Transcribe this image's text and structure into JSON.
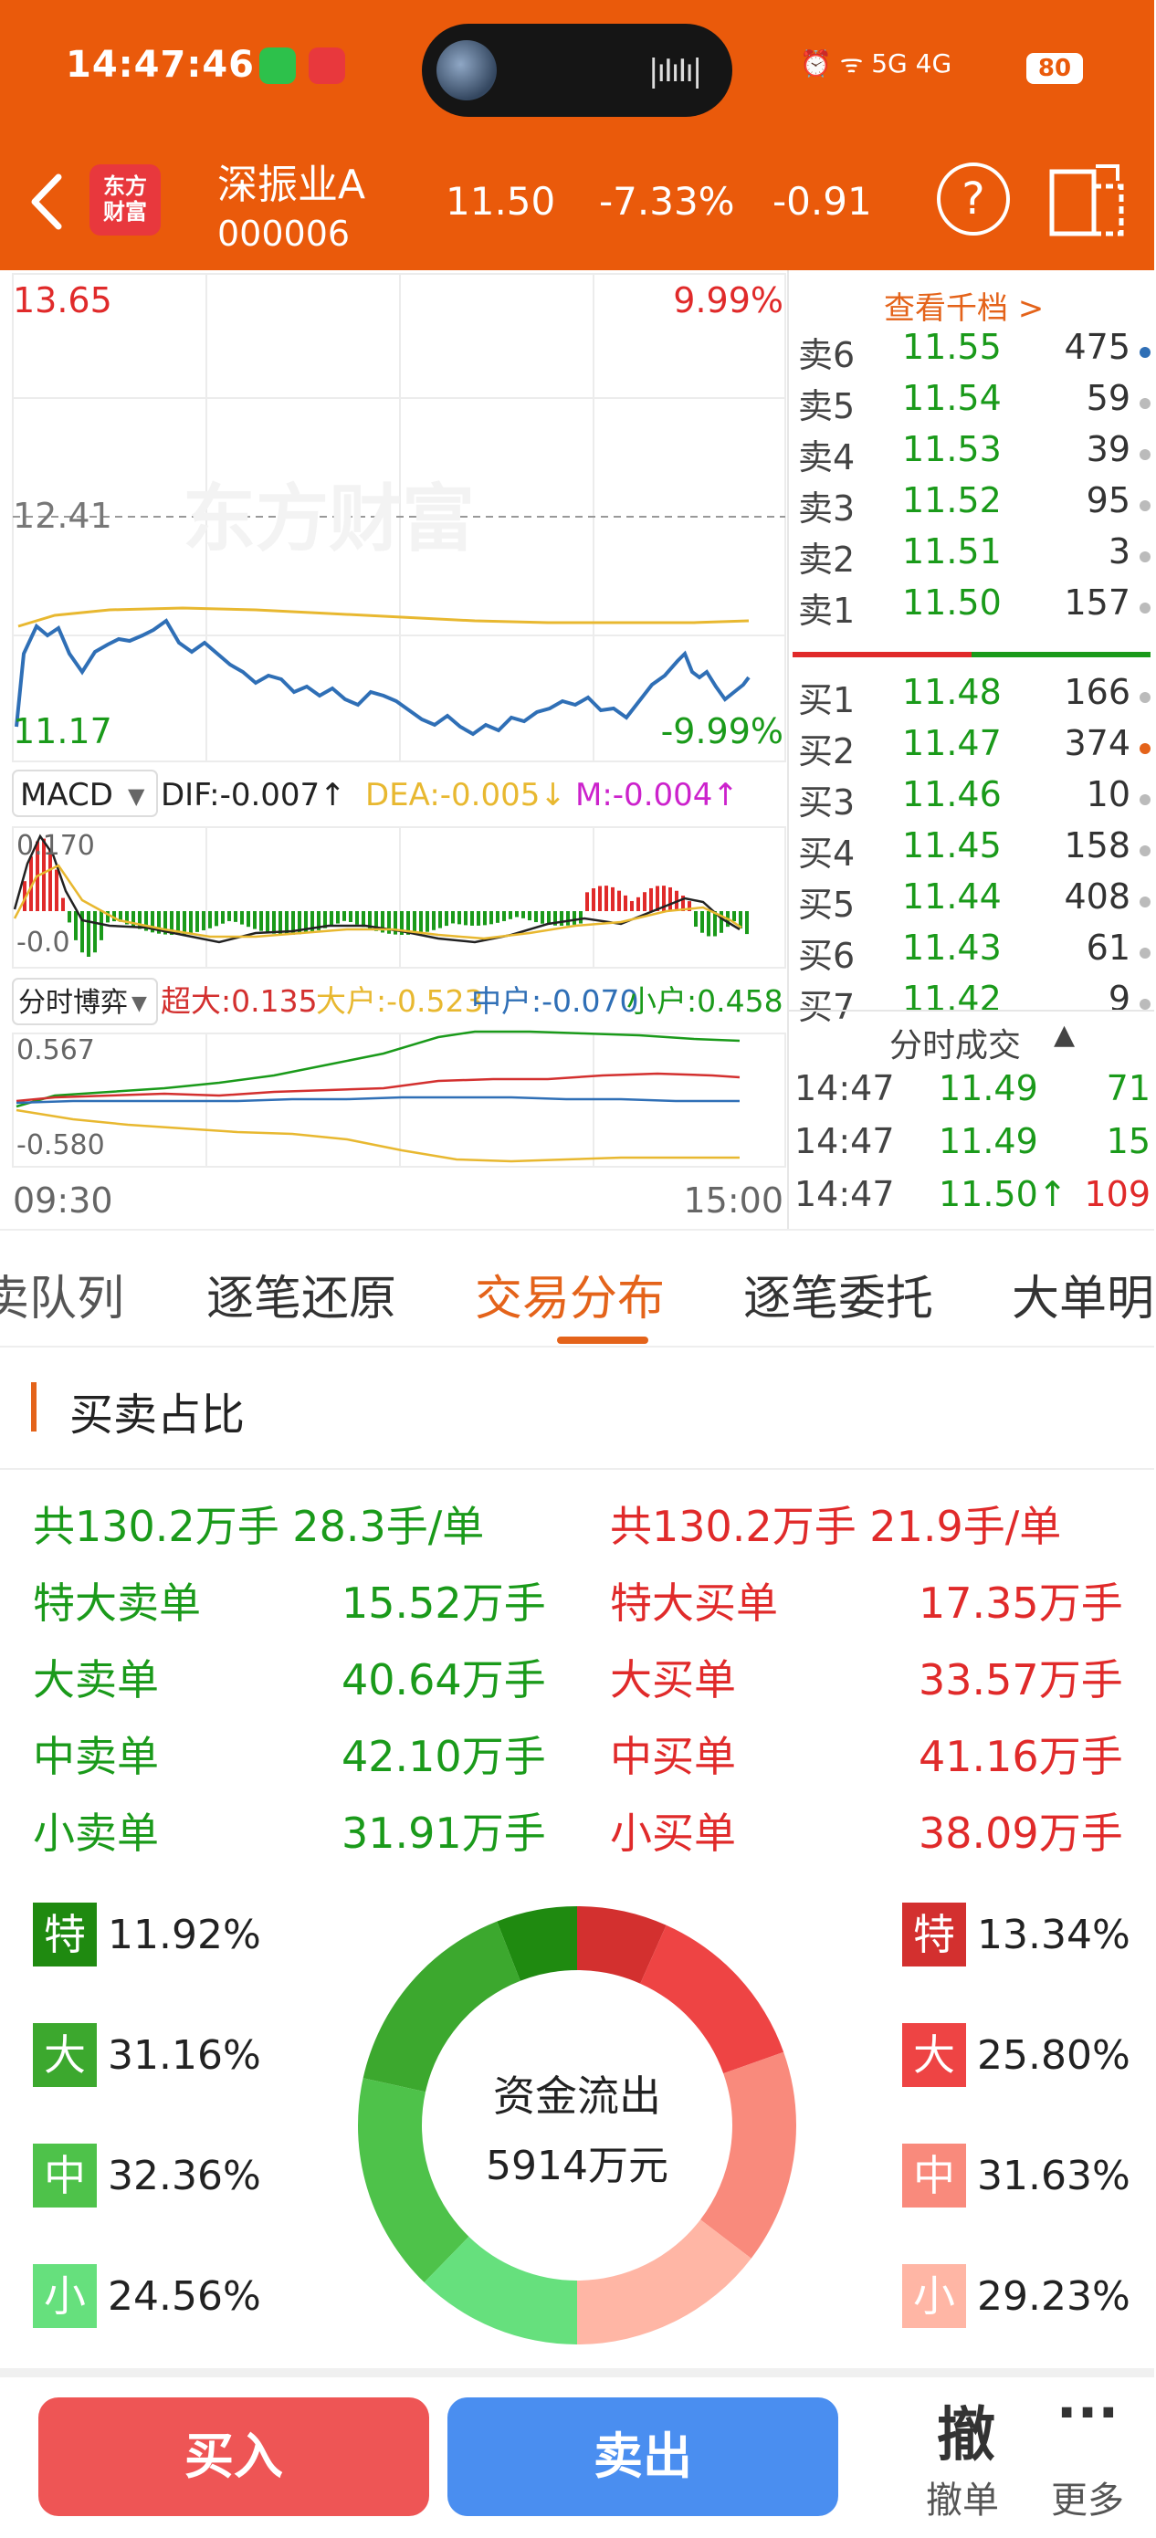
{
  "status": {
    "time": "14:47:46",
    "signal_text": "⏰  ᯤ 5G  4G",
    "battery": "80"
  },
  "header": {
    "back_icon": "chevron-left-icon",
    "logo_text_1": "东方",
    "logo_text_2": "财富",
    "stock_name": "深振业A",
    "stock_code": "000006",
    "price": "11.50",
    "change_pct": "-7.33%",
    "change": "-0.91",
    "help_label": "?"
  },
  "chart": {
    "price_high": "13.65",
    "pct_high": "9.99%",
    "price_ref": "12.41",
    "price_low": "11.17",
    "pct_low": "-9.99%",
    "watermark": "东方财富",
    "macd_selector": "MACD",
    "dif": "DIF:-0.007↑",
    "dea": "DEA:-0.005↓",
    "m": "M:-0.004↑",
    "macd_high": "0.170",
    "macd_low": "-0.0",
    "flow_selector": "分时博弈",
    "flow_super": "超大:0.135",
    "flow_large": "大户:-0.523",
    "flow_mid": "中户:-0.070",
    "flow_small": "小户:0.458",
    "flow_high": "0.567",
    "flow_low": "-0.580",
    "time_start": "09:30",
    "time_end": "15:00"
  },
  "order_book": {
    "view_more": "查看千档 >",
    "asks": [
      {
        "label": "卖6",
        "price": "11.55",
        "vol": "475"
      },
      {
        "label": "卖5",
        "price": "11.54",
        "vol": "59"
      },
      {
        "label": "卖4",
        "price": "11.53",
        "vol": "39"
      },
      {
        "label": "卖3",
        "price": "11.52",
        "vol": "95"
      },
      {
        "label": "卖2",
        "price": "11.51",
        "vol": "3"
      },
      {
        "label": "卖1",
        "price": "11.50",
        "vol": "157"
      }
    ],
    "bids": [
      {
        "label": "买1",
        "price": "11.48",
        "vol": "166"
      },
      {
        "label": "买2",
        "price": "11.47",
        "vol": "374"
      },
      {
        "label": "买3",
        "price": "11.46",
        "vol": "10"
      },
      {
        "label": "买4",
        "price": "11.45",
        "vol": "158"
      },
      {
        "label": "买5",
        "price": "11.44",
        "vol": "408"
      },
      {
        "label": "买6",
        "price": "11.43",
        "vol": "61"
      },
      {
        "label": "买7",
        "price": "11.42",
        "vol": "9"
      }
    ]
  },
  "ticks": {
    "title": "分时成交",
    "rows": [
      {
        "time": "14:47",
        "price": "11.49",
        "vol": "71"
      },
      {
        "time": "14:47",
        "price": "11.49",
        "vol": "15"
      },
      {
        "time": "14:47",
        "price": "11.50↑",
        "vol": "109"
      }
    ]
  },
  "tabs": [
    "卖队列",
    "逐笔还原",
    "交易分布",
    "逐笔委托",
    "大单明"
  ],
  "distribution": {
    "section_title": "买卖占比",
    "sell_total": "共130.2万手 28.3手/单",
    "buy_total": "共130.2万手 21.9手/单",
    "sell_rows": [
      {
        "label": "特大卖单",
        "value": "15.52万手"
      },
      {
        "label": "大卖单",
        "value": "40.64万手"
      },
      {
        "label": "中卖单",
        "value": "42.10万手"
      },
      {
        "label": "小卖单",
        "value": "31.91万手"
      }
    ],
    "buy_rows": [
      {
        "label": "特大买单",
        "value": "17.35万手"
      },
      {
        "label": "大买单",
        "value": "33.57万手"
      },
      {
        "label": "中买单",
        "value": "41.16万手"
      },
      {
        "label": "小买单",
        "value": "38.09万手"
      }
    ],
    "sell_legend": [
      {
        "tag": "特",
        "pct": "11.92%",
        "color": "#1f8a10"
      },
      {
        "tag": "大",
        "pct": "31.16%",
        "color": "#3ca82e"
      },
      {
        "tag": "中",
        "pct": "32.36%",
        "color": "#4ec24a"
      },
      {
        "tag": "小",
        "pct": "24.56%",
        "color": "#66e07d"
      }
    ],
    "buy_legend": [
      {
        "tag": "特",
        "pct": "13.34%",
        "color": "#d3302f"
      },
      {
        "tag": "大",
        "pct": "25.80%",
        "color": "#ee4444"
      },
      {
        "tag": "中",
        "pct": "31.63%",
        "color": "#f98a7c"
      },
      {
        "tag": "小",
        "pct": "29.23%",
        "color": "#ffb6a5"
      }
    ],
    "center_line1": "资金流出",
    "center_line2": "5914万元"
  },
  "bottom": {
    "buy_label": "买入",
    "sell_label": "卖出",
    "cancel_glyph": "撤",
    "cancel_label": "撤单",
    "more_glyph": "···",
    "more_label": "更多"
  }
}
